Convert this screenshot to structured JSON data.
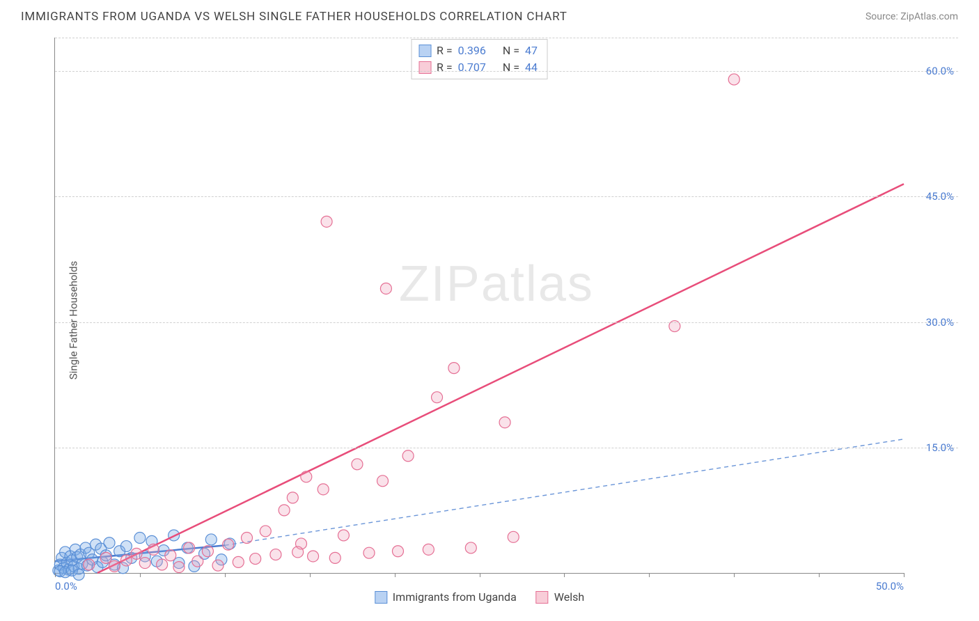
{
  "header": {
    "title": "IMMIGRANTS FROM UGANDA VS WELSH SINGLE FATHER HOUSEHOLDS CORRELATION CHART",
    "source": "Source: ZipAtlas.com"
  },
  "chart": {
    "type": "scatter",
    "y_axis_label": "Single Father Households",
    "xlim": [
      0,
      50
    ],
    "ylim": [
      0,
      64
    ],
    "xticks": [
      0,
      5,
      10,
      15,
      20,
      25,
      30,
      35,
      40,
      45,
      50
    ],
    "xtick_labels": {
      "0": "0.0%",
      "50": "50.0%"
    },
    "yticks": [
      15,
      30,
      45,
      60
    ],
    "ytick_labels": {
      "15": "15.0%",
      "30": "30.0%",
      "45": "45.0%",
      "60": "60.0%"
    },
    "grid_color": "#d6d6d6",
    "axis_color": "#888888",
    "background_color": "#ffffff",
    "tick_label_color": "#4a7bd0",
    "marker_radius": 8,
    "marker_stroke_width": 1.2,
    "line_width_solid": 2.5,
    "line_width_dash": 1.4,
    "stat_legend": [
      {
        "swatch_fill": "#b9d2f3",
        "swatch_stroke": "#5a8fd6",
        "r_label": "R =",
        "r_value": "0.396",
        "n_label": "N =",
        "n_value": "47"
      },
      {
        "swatch_fill": "#f8cdd8",
        "swatch_stroke": "#e56f94",
        "r_label": "R =",
        "r_value": "0.707",
        "n_label": "N =",
        "n_value": "44"
      }
    ],
    "bottom_legend": [
      {
        "swatch_fill": "#b9d2f3",
        "swatch_stroke": "#5a8fd6",
        "label": "Immigrants from Uganda"
      },
      {
        "swatch_fill": "#f8cdd8",
        "swatch_stroke": "#e56f94",
        "label": "Welsh"
      }
    ],
    "series": [
      {
        "name": "uganda",
        "marker_fill": "rgba(120,170,230,0.35)",
        "marker_stroke": "#5a8fd6",
        "trend": {
          "x1": 0,
          "y1": 1.4,
          "x2": 10,
          "y2": 3.3,
          "solid": true,
          "color": "#4a7bd0"
        },
        "trend_ext": {
          "x1": 10,
          "y1": 3.3,
          "x2": 50,
          "y2": 16.0,
          "dash": "6 5",
          "color": "#6a95d8"
        },
        "points": [
          [
            0.2,
            0.3
          ],
          [
            0.3,
            1.0
          ],
          [
            0.4,
            1.8
          ],
          [
            0.5,
            0.6
          ],
          [
            0.6,
            2.5
          ],
          [
            0.7,
            1.2
          ],
          [
            0.8,
            0.4
          ],
          [
            0.9,
            2.0
          ],
          [
            1.0,
            1.5
          ],
          [
            1.1,
            0.8
          ],
          [
            1.2,
            2.8
          ],
          [
            1.3,
            1.9
          ],
          [
            1.4,
            0.5
          ],
          [
            1.5,
            2.2
          ],
          [
            1.6,
            1.1
          ],
          [
            1.8,
            3.0
          ],
          [
            1.9,
            0.9
          ],
          [
            2.0,
            2.4
          ],
          [
            2.2,
            1.6
          ],
          [
            2.4,
            3.4
          ],
          [
            2.5,
            0.7
          ],
          [
            2.7,
            2.9
          ],
          [
            2.8,
            1.3
          ],
          [
            3.0,
            2.1
          ],
          [
            3.2,
            3.6
          ],
          [
            3.5,
            1.0
          ],
          [
            3.8,
            2.6
          ],
          [
            4.0,
            0.6
          ],
          [
            4.2,
            3.2
          ],
          [
            4.5,
            1.8
          ],
          [
            5.0,
            4.2
          ],
          [
            5.3,
            2.0
          ],
          [
            5.7,
            3.8
          ],
          [
            6.0,
            1.4
          ],
          [
            6.4,
            2.7
          ],
          [
            7.0,
            4.5
          ],
          [
            7.3,
            1.2
          ],
          [
            7.8,
            3.0
          ],
          [
            8.2,
            0.8
          ],
          [
            8.8,
            2.3
          ],
          [
            9.2,
            4.0
          ],
          [
            9.8,
            1.6
          ],
          [
            10.3,
            3.5
          ],
          [
            0.3,
            0.2
          ],
          [
            0.6,
            0.1
          ],
          [
            1.0,
            0.3
          ],
          [
            1.4,
            -0.2
          ]
        ]
      },
      {
        "name": "welsh",
        "marker_fill": "rgba(240,160,185,0.30)",
        "marker_stroke": "#e56f94",
        "trend": {
          "x1": 2.5,
          "y1": 0,
          "x2": 50,
          "y2": 46.5,
          "solid": true,
          "color": "#e84d7a"
        },
        "points": [
          [
            2.0,
            1.0
          ],
          [
            3.0,
            1.8
          ],
          [
            3.5,
            0.8
          ],
          [
            4.2,
            1.5
          ],
          [
            4.8,
            2.3
          ],
          [
            5.3,
            1.2
          ],
          [
            5.8,
            2.8
          ],
          [
            6.3,
            1.0
          ],
          [
            6.8,
            2.1
          ],
          [
            7.3,
            0.7
          ],
          [
            7.9,
            3.0
          ],
          [
            8.4,
            1.4
          ],
          [
            9.0,
            2.6
          ],
          [
            9.6,
            0.9
          ],
          [
            10.2,
            3.4
          ],
          [
            10.8,
            1.3
          ],
          [
            11.3,
            4.2
          ],
          [
            11.8,
            1.7
          ],
          [
            12.4,
            5.0
          ],
          [
            13.0,
            2.2
          ],
          [
            13.5,
            7.5
          ],
          [
            14.0,
            9.0
          ],
          [
            14.5,
            3.5
          ],
          [
            14.8,
            11.5
          ],
          [
            15.2,
            2.0
          ],
          [
            15.8,
            10.0
          ],
          [
            16.5,
            1.8
          ],
          [
            17.0,
            4.5
          ],
          [
            17.8,
            13.0
          ],
          [
            18.5,
            2.4
          ],
          [
            19.3,
            11.0
          ],
          [
            20.2,
            2.6
          ],
          [
            20.8,
            14.0
          ],
          [
            22.0,
            2.8
          ],
          [
            22.5,
            21.0
          ],
          [
            23.5,
            24.5
          ],
          [
            24.5,
            3.0
          ],
          [
            26.5,
            18.0
          ],
          [
            27.0,
            4.3
          ],
          [
            19.5,
            34.0
          ],
          [
            16.0,
            42.0
          ],
          [
            36.5,
            29.5
          ],
          [
            40.0,
            59.0
          ],
          [
            14.3,
            2.5
          ]
        ]
      }
    ],
    "watermark": "ZIPatlas"
  }
}
